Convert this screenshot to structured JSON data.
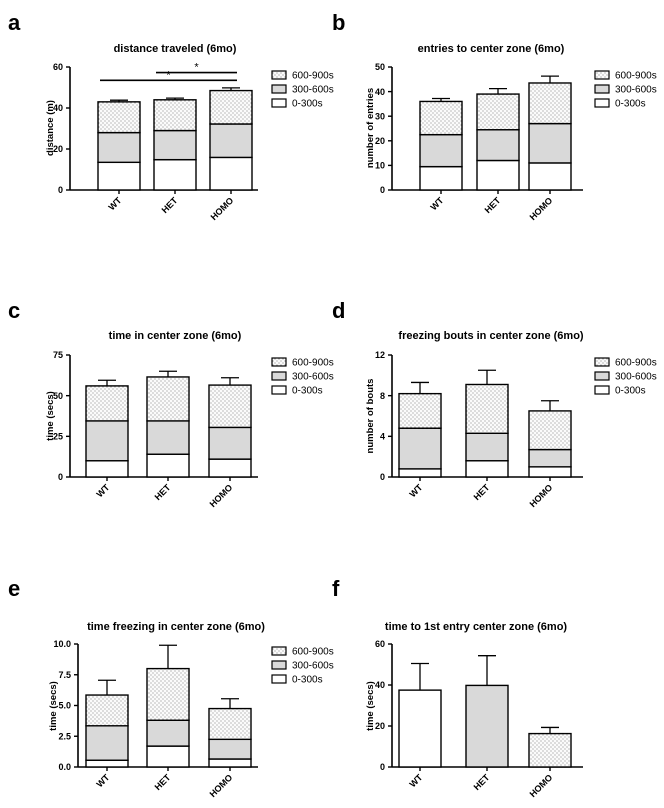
{
  "colors": {
    "s0": "#ffffff",
    "s1": "#d9d9d9",
    "s2": "#f7f7f7",
    "line": "#000000"
  },
  "chart_data": [
    {
      "id": "a",
      "letter": "a",
      "type": "bar",
      "stacked": true,
      "title": "distance traveled (6mo)",
      "ylabel": "distance (m)",
      "ylim": [
        0,
        60
      ],
      "yticks": [
        0,
        20,
        40,
        60
      ],
      "ytick_labels": [
        "0",
        "20",
        "40",
        "60"
      ],
      "categories": [
        "WT",
        "HET",
        "HOMO"
      ],
      "series": [
        {
          "name": "0-300s",
          "values": [
            13.5,
            14.8,
            15.9
          ],
          "errors": [
            0.8,
            0.7,
            0.8
          ]
        },
        {
          "name": "300-600s",
          "values": [
            14.5,
            14.2,
            16.3
          ],
          "errors": [
            1.0,
            0.8,
            1.2
          ]
        },
        {
          "name": "600-900s",
          "values": [
            15.0,
            15.0,
            16.3
          ],
          "errors": [
            0.8,
            0.8,
            1.3
          ]
        }
      ],
      "legend": [
        "600-900s",
        "300-600s",
        "0-300s"
      ],
      "significance": [
        {
          "from": 0,
          "to": 2,
          "label": "*",
          "y": 53.5
        },
        {
          "from": 1,
          "to": 2,
          "label": "*",
          "y": 57.3
        }
      ]
    },
    {
      "id": "b",
      "letter": "b",
      "type": "bar",
      "stacked": true,
      "title": "entries to center zone (6mo)",
      "ylabel": "number of entries",
      "ylim": [
        0,
        50
      ],
      "yticks": [
        0,
        10,
        20,
        30,
        40,
        50
      ],
      "ytick_labels": [
        "0",
        "10",
        "20",
        "30",
        "40",
        "50"
      ],
      "categories": [
        "WT",
        "HET",
        "HOMO"
      ],
      "series": [
        {
          "name": "0-300s",
          "values": [
            9.5,
            12.0,
            11.0
          ],
          "errors": [
            1.4,
            1.4,
            1.2
          ]
        },
        {
          "name": "300-600s",
          "values": [
            13.0,
            12.5,
            16.0
          ],
          "errors": [
            1.4,
            1.0,
            2.8
          ]
        },
        {
          "name": "600-900s",
          "values": [
            13.5,
            14.5,
            16.5
          ],
          "errors": [
            1.2,
            2.2,
            2.8
          ]
        }
      ],
      "legend": [
        "600-900s",
        "300-600s",
        "0-300s"
      ]
    },
    {
      "id": "c",
      "letter": "c",
      "type": "bar",
      "stacked": true,
      "title": "time in center zone (6mo)",
      "ylabel": "time (secs)",
      "ylim": [
        0,
        75
      ],
      "yticks": [
        0,
        25,
        50,
        75
      ],
      "ytick_labels": [
        "0",
        "25",
        "50",
        "75"
      ],
      "categories": [
        "WT",
        "HET",
        "HOMO"
      ],
      "series": [
        {
          "name": "0-300s",
          "values": [
            10.0,
            14.0,
            11.0
          ],
          "errors": [
            2.0,
            3.0,
            1.2
          ]
        },
        {
          "name": "300-600s",
          "values": [
            24.5,
            20.5,
            19.5
          ],
          "errors": [
            5.0,
            4.0,
            3.0
          ]
        },
        {
          "name": "600-900s",
          "values": [
            21.5,
            27.0,
            26.0
          ],
          "errors": [
            3.5,
            3.5,
            4.5
          ]
        }
      ],
      "legend": [
        "600-900s",
        "300-600s",
        "0-300s"
      ]
    },
    {
      "id": "d",
      "letter": "d",
      "type": "bar",
      "stacked": true,
      "title": "freezing bouts in center zone (6mo)",
      "ylabel": "number of bouts",
      "ylim": [
        0,
        12
      ],
      "yticks": [
        0,
        4,
        8,
        12
      ],
      "ytick_labels": [
        "0",
        "4",
        "8",
        "12"
      ],
      "categories": [
        "WT",
        "HET",
        "HOMO"
      ],
      "series": [
        {
          "name": "0-300s",
          "values": [
            0.8,
            1.6,
            1.0
          ],
          "errors": [
            0.4,
            0.8,
            0.6
          ]
        },
        {
          "name": "300-600s",
          "values": [
            4.0,
            2.7,
            1.7
          ],
          "errors": [
            1.7,
            0.9,
            0.5
          ]
        },
        {
          "name": "600-900s",
          "values": [
            3.4,
            4.8,
            3.8
          ],
          "errors": [
            1.1,
            1.4,
            1.0
          ]
        }
      ],
      "legend": [
        "600-900s",
        "300-600s",
        "0-300s"
      ]
    },
    {
      "id": "e",
      "letter": "e",
      "type": "bar",
      "stacked": true,
      "title": "time freezing in center zone (6mo)",
      "ylabel": "time (secs)",
      "ylim": [
        0,
        10
      ],
      "yticks": [
        0,
        2.5,
        5,
        7.5,
        10
      ],
      "ytick_labels": [
        "0.0",
        "2.5",
        "5.0",
        "7.5",
        "10.0"
      ],
      "categories": [
        "WT",
        "HET",
        "HOMO"
      ],
      "series": [
        {
          "name": "0-300s",
          "values": [
            0.55,
            1.7,
            0.65
          ],
          "errors": [
            0.3,
            0.9,
            0.35
          ]
        },
        {
          "name": "300-600s",
          "values": [
            2.8,
            2.1,
            1.6
          ],
          "errors": [
            1.6,
            1.1,
            0.8
          ]
        },
        {
          "name": "600-900s",
          "values": [
            2.5,
            4.2,
            2.5
          ],
          "errors": [
            1.2,
            1.9,
            0.8
          ]
        }
      ],
      "legend": [
        "600-900s",
        "300-600s",
        "0-300s"
      ]
    },
    {
      "id": "f",
      "letter": "f",
      "type": "bar",
      "stacked": false,
      "title": "time to 1st entry center zone (6mo)",
      "ylabel": "time (secs)",
      "ylim": [
        0,
        60
      ],
      "yticks": [
        0,
        20,
        40,
        60
      ],
      "ytick_labels": [
        "0",
        "20",
        "40",
        "60"
      ],
      "categories": [
        "WT",
        "HET",
        "HOMO"
      ],
      "values": [
        37.5,
        39.8,
        16.3
      ],
      "errors": [
        13.0,
        14.5,
        3.0
      ],
      "fills": [
        "s0",
        "s1",
        "s2"
      ]
    }
  ]
}
